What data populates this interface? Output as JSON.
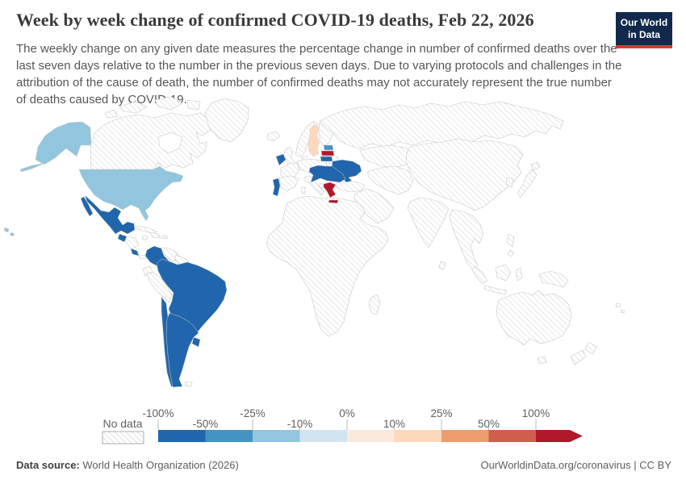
{
  "header": {
    "title": "Week by week change of confirmed COVID-19 deaths, Feb 22, 2026",
    "subtitle": "The weekly change on any given date measures the percentage change in number of confirmed deaths over the last seven days relative to the number in the previous seven days. Due to varying protocols and challenges in the attribution of the cause of death, the number of confirmed deaths may not accurately represent the true number of deaths caused by COVID-19.",
    "logo": {
      "line1": "Our World",
      "line2": "in Data",
      "bg_color": "#12294d",
      "accent_color": "#d93a34"
    }
  },
  "legend": {
    "no_data_label": "No data",
    "ticks": [
      "-100%",
      "-50%",
      "-25%",
      "-10%",
      "0%",
      "10%",
      "25%",
      "50%",
      "100%"
    ],
    "segment_colors": [
      "#2166ac",
      "#4393c3",
      "#92c5de",
      "#d1e5f0",
      "#fbe9de",
      "#fcd8bd",
      "#ec9c6d",
      "#cf5e4e",
      "#b2182b"
    ]
  },
  "map": {
    "regions": [
      {
        "id": "united-states",
        "label": "United States",
        "color": "#92c5de"
      },
      {
        "id": "mexico",
        "label": "Mexico",
        "color": "#2166ac"
      },
      {
        "id": "guatemala",
        "label": "Guatemala",
        "color": "#2166ac"
      },
      {
        "id": "costa-rica",
        "label": "Costa Rica",
        "color": "#2166ac"
      },
      {
        "id": "colombia",
        "label": "Colombia",
        "color": "#2166ac"
      },
      {
        "id": "brazil",
        "label": "Brazil",
        "color": "#2166ac"
      },
      {
        "id": "chile",
        "label": "Chile",
        "color": "#2166ac"
      },
      {
        "id": "argentina",
        "label": "Argentina",
        "color": "#2166ac"
      },
      {
        "id": "uruguay",
        "label": "Uruguay",
        "color": "#2166ac"
      },
      {
        "id": "ireland",
        "label": "Ireland",
        "color": "#2166ac"
      },
      {
        "id": "portugal",
        "label": "Portugal",
        "color": "#2166ac"
      },
      {
        "id": "sweden",
        "label": "Sweden",
        "color": "#fcd8bd"
      },
      {
        "id": "estonia",
        "label": "Estonia",
        "color": "#4393c3"
      },
      {
        "id": "latvia",
        "label": "Latvia",
        "color": "#b2182b"
      },
      {
        "id": "lithuania",
        "label": "Lithuania",
        "color": "#2166ac"
      },
      {
        "id": "ukraine",
        "label": "Ukraine",
        "color": "#2166ac"
      },
      {
        "id": "central-southeast-europe",
        "label": "Central/Southeast Europe cluster",
        "color": "#2166ac"
      },
      {
        "id": "greece",
        "label": "Greece",
        "color": "#b2182b"
      }
    ]
  },
  "chart_data": {
    "type": "heatmap",
    "subtype": "choropleth_world_map",
    "title": "Week by week change of confirmed COVID-19 deaths, Feb 22, 2026",
    "date": "Feb 22, 2026",
    "metric": "Week-by-week percentage change of confirmed COVID-19 deaths",
    "color_scale": {
      "type": "diverging",
      "tick_labels": [
        "-100%",
        "-50%",
        "-25%",
        "-10%",
        "0%",
        "10%",
        "25%",
        "50%",
        "100%"
      ],
      "bin_colors": [
        "#2166ac",
        "#4393c3",
        "#92c5de",
        "#d1e5f0",
        "#fbe9de",
        "#fcd8bd",
        "#ec9c6d",
        "#cf5e4e",
        "#b2182b"
      ],
      "no_data_style": "diagonal-hatch"
    },
    "legend_position": "bottom",
    "values": [
      {
        "entity": "United States",
        "bin": "-25% to -10%"
      },
      {
        "entity": "Mexico",
        "bin": "-100% to -50%"
      },
      {
        "entity": "Guatemala",
        "bin": "-100% to -50%"
      },
      {
        "entity": "Costa Rica",
        "bin": "-100% to -50%"
      },
      {
        "entity": "Colombia",
        "bin": "-100% to -50%"
      },
      {
        "entity": "Brazil",
        "bin": "-100% to -50%"
      },
      {
        "entity": "Chile",
        "bin": "-100% to -50%"
      },
      {
        "entity": "Argentina",
        "bin": "-100% to -50%"
      },
      {
        "entity": "Uruguay",
        "bin": "-100% to -50%"
      },
      {
        "entity": "Ireland",
        "bin": "-100% to -50%"
      },
      {
        "entity": "Portugal",
        "bin": "-100% to -50%"
      },
      {
        "entity": "Lithuania",
        "bin": "-100% to -50%"
      },
      {
        "entity": "Ukraine",
        "bin": "-100% to -50%"
      },
      {
        "entity": "Slovakia/Hungary/Croatia/Serbia/Romania/Bulgaria cluster",
        "bin": "-100% to -50%"
      },
      {
        "entity": "Estonia",
        "bin": "-50% to -25%"
      },
      {
        "entity": "Sweden",
        "bin": "10% to 25%"
      },
      {
        "entity": "Latvia",
        "bin": "100%+"
      },
      {
        "entity": "Greece",
        "bin": "100%+"
      },
      {
        "entity": "All other countries",
        "bin": "No data"
      }
    ]
  },
  "footer": {
    "source_label": "Data source:",
    "source_value": " World Health Organization (2026)",
    "link_text": "OurWorldinData.org/coronavirus",
    "license_text": " | CC BY"
  }
}
